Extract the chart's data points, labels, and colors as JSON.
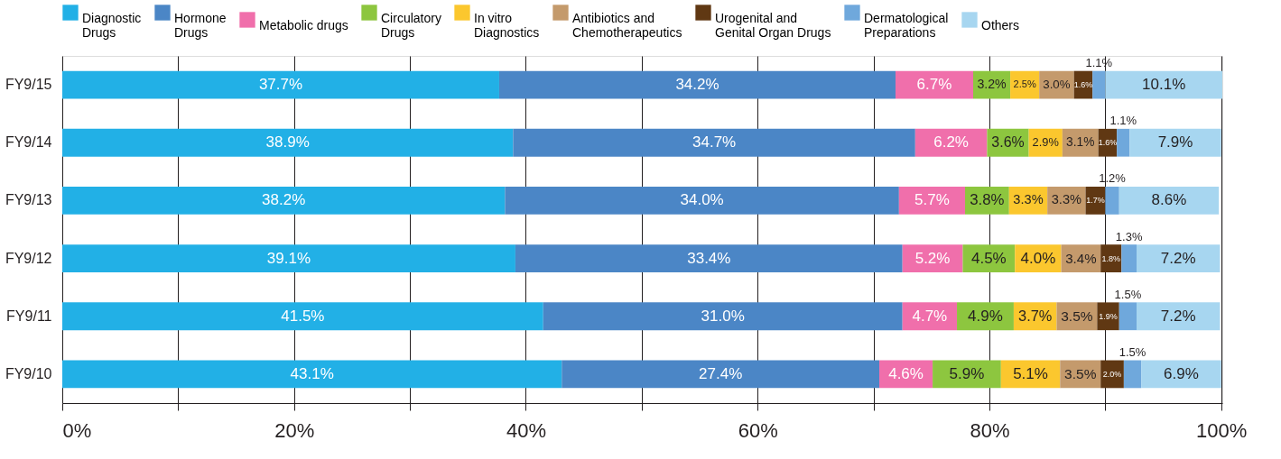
{
  "chart_data": {
    "type": "bar",
    "orientation": "horizontal",
    "stacked": true,
    "categories": [
      "FY9/15",
      "FY9/14",
      "FY9/13",
      "FY9/12",
      "FY9/11",
      "FY9/10"
    ],
    "series": [
      {
        "name": "Diagnostic\nDrugs",
        "color": "#22b0e6",
        "values": [
          37.7,
          38.9,
          38.2,
          39.1,
          41.5,
          43.1
        ],
        "value_labels": [
          "37.7%",
          "38.9%",
          "38.2%",
          "39.1%",
          "41.5%",
          "43.1%"
        ]
      },
      {
        "name": "Hormone\nDrugs",
        "color": "#4b86c6",
        "values": [
          34.2,
          34.7,
          34.0,
          33.4,
          31.0,
          27.4
        ],
        "value_labels": [
          "34.2%",
          "34.7%",
          "34.0%",
          "33.4%",
          "31.0%",
          "27.4%"
        ]
      },
      {
        "name": "Metabolic drugs",
        "color": "#f06fab",
        "values": [
          6.7,
          6.2,
          5.7,
          5.2,
          4.7,
          4.6
        ],
        "value_labels": [
          "6.7%",
          "6.2%",
          "5.7%",
          "5.2%",
          "4.7%",
          "4.6%"
        ]
      },
      {
        "name": "Circulatory\nDrugs",
        "color": "#8dc63f",
        "values": [
          3.2,
          3.6,
          3.8,
          4.5,
          4.9,
          5.9
        ],
        "value_labels": [
          "3.2%",
          "3.6%",
          "3.8%",
          "4.5%",
          "4.9%",
          "5.9%"
        ]
      },
      {
        "name": "In vitro\nDiagnostics",
        "color": "#fbc72e",
        "values": [
          2.5,
          2.9,
          3.3,
          4.0,
          3.7,
          5.1
        ],
        "value_labels": [
          "2.5%",
          "2.9%",
          "3.3%",
          "4.0%",
          "3.7%",
          "5.1%"
        ]
      },
      {
        "name": "Antibiotics and\nChemotherapeutics",
        "color": "#c49a6c",
        "values": [
          3.0,
          3.1,
          3.3,
          3.4,
          3.5,
          3.5
        ],
        "value_labels": [
          "3.0%",
          "3.1%",
          "3.3%",
          "3.4%",
          "3.5%",
          "3.5%"
        ]
      },
      {
        "name": "Urogenital and\nGenital Organ Drugs",
        "color": "#603813",
        "values": [
          1.6,
          1.6,
          1.7,
          1.8,
          1.9,
          2.0
        ],
        "value_labels": [
          "1.6%",
          "1.6%",
          "1.7%",
          "1.8%",
          "1.9%",
          "2.0%"
        ]
      },
      {
        "name": "Dermatological\nPreparations",
        "color": "#6fa8dc",
        "values": [
          1.1,
          1.1,
          1.2,
          1.3,
          1.5,
          1.5
        ],
        "value_labels": [
          "1.1%",
          "1.1%",
          "1.2%",
          "1.3%",
          "1.5%",
          "1.5%"
        ]
      },
      {
        "name": "Others",
        "color": "#a7d6f0",
        "values": [
          10.1,
          7.9,
          8.6,
          7.2,
          7.2,
          6.9
        ],
        "value_labels": [
          "10.1%",
          "7.9%",
          "8.6%",
          "7.2%",
          "7.2%",
          "6.9%"
        ]
      }
    ],
    "xlim": [
      0,
      100.1
    ],
    "xticks": [
      {
        "value": 0,
        "label": "0%"
      },
      {
        "value": 10,
        "label": null
      },
      {
        "value": 20,
        "label": "20%"
      },
      {
        "value": 30,
        "label": null
      },
      {
        "value": 40,
        "label": "40%"
      },
      {
        "value": 50,
        "label": null
      },
      {
        "value": 60,
        "label": "60%"
      },
      {
        "value": 70,
        "label": null
      },
      {
        "value": 80,
        "label": "80%"
      },
      {
        "value": 90,
        "label": null
      },
      {
        "value": 100,
        "label": "100%"
      }
    ],
    "grid": "x",
    "legend": "top"
  }
}
